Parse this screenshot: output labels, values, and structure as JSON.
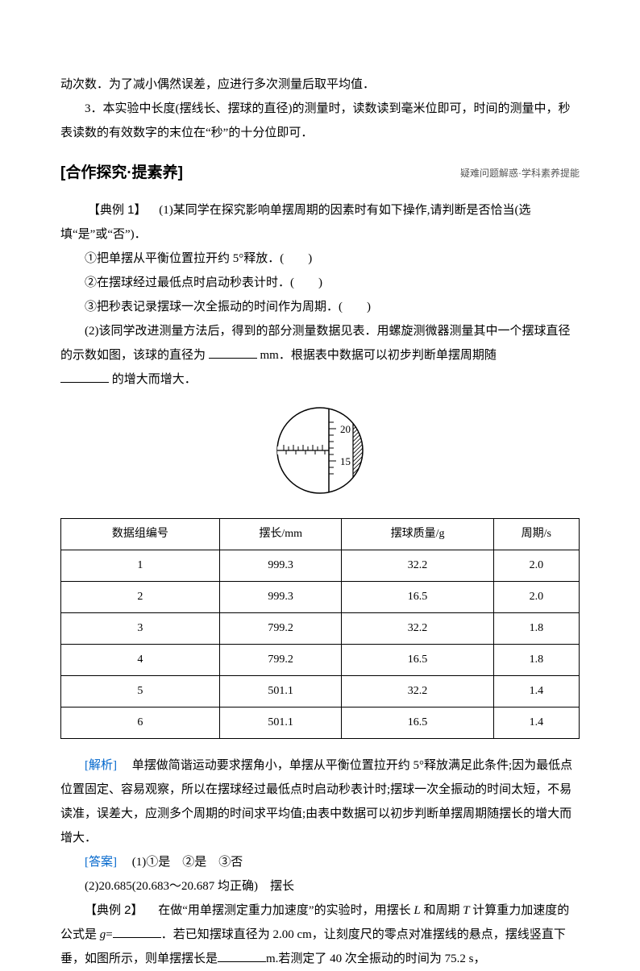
{
  "p1": "动次数．为了减小偶然误差，应进行多次测量后取平均值．",
  "p2": "3．本实验中长度(摆线长、摆球的直径)的测量时，读数读到毫米位即可，时间的测量中，秒表读数的有效数字的末位在“秒”的十分位即可．",
  "section_title": "[合作探究·提素养]",
  "section_subtitle": "疑难问题解惑·学科素养提能",
  "ex1_label": "【典例 1】",
  "ex1_q": " (1)某同学在探究影响单摆周期的因素时有如下操作,请判断是否恰当(选填“是”或“否”)．",
  "ex1_item1": "①把单摆从平衡位置拉开约 5°释放．(　　)",
  "ex1_item2": "②在摆球经过最低点时启动秒表计时．(　　)",
  "ex1_item3": "③把秒表记录摆球一次全振动的时间作为周期．(　　)",
  "ex1_q2a": "(2)该同学改进测量方法后，得到的部分测量数据见表．用螺旋测微器测量其中一个摆球直径的示数如图，该球的直径为",
  "ex1_q2b": "mm．根据表中数据可以初步判断单摆周期随",
  "ex1_q2c": "的增大而增大．",
  "micrometer": {
    "scale_top": "20",
    "scale_bottom": "15",
    "bg_color": "#ffffff",
    "line_color": "#000000"
  },
  "table": {
    "headers": [
      "数据组编号",
      "摆长/mm",
      "摆球质量/g",
      "周期/s"
    ],
    "rows": [
      [
        "1",
        "999.3",
        "32.2",
        "2.0"
      ],
      [
        "2",
        "999.3",
        "16.5",
        "2.0"
      ],
      [
        "3",
        "799.2",
        "32.2",
        "1.8"
      ],
      [
        "4",
        "799.2",
        "16.5",
        "1.8"
      ],
      [
        "5",
        "501.1",
        "32.2",
        "1.4"
      ],
      [
        "6",
        "501.1",
        "16.5",
        "1.4"
      ]
    ]
  },
  "analysis_label": "[解析]",
  "analysis_text": "　单摆做简谐运动要求摆角小，单摆从平衡位置拉开约 5°释放满足此条件;因为最低点位置固定、容易观察，所以在摆球经过最低点时启动秒表计时;摆球一次全振动的时间太短，不易读准，误差大，应测多个周期的时间求平均值;由表中数据可以初步判断单摆周期随摆长的增大而增大．",
  "answer_label": "[答案]",
  "answer_text": "　(1)①是　②是　③否",
  "answer_text2": "(2)20.685(20.683～20.687 均正确)　摆长",
  "ex2_label": "【典例 2】",
  "ex2_text_a": "　在做“用单摆测定重力加速度”的实验时，用摆长 ",
  "ex2_L": "L",
  "ex2_text_b": " 和周期 ",
  "ex2_T": "T",
  "ex2_text_c": " 计算重力加速度的公式是 ",
  "ex2_g": "g",
  "ex2_text_d": "=",
  "ex2_text_e": "．若已知摆球直径为 2.00 cm，让刻度尺的零点对准摆线的悬点，摆线竖直下垂，如图所示，则单摆摆长是",
  "ex2_text_f": "m.若测定了 40 次全振动的时间为 75.2 s，"
}
